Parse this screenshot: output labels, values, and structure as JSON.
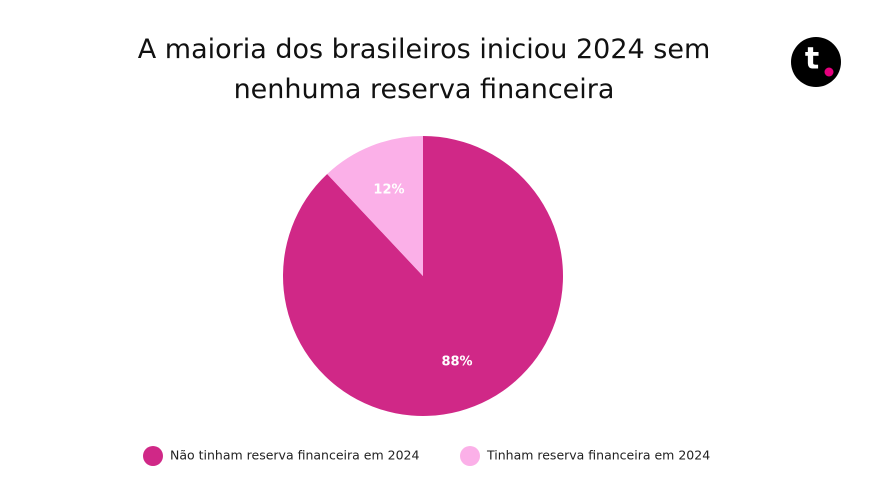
{
  "chart_data": {
    "type": "pie",
    "title": "A maioria dos brasileiros iniciou 2024 sem nenhuma reserva financeira",
    "logo": "t",
    "categories": [
      "Não tinham reserva financeira em 2024",
      "Tinham reserva financeira em 2024"
    ],
    "values": [
      88,
      12
    ],
    "value_labels": [
      "88%",
      "12%"
    ],
    "colors": [
      "#d02887",
      "#fbb0e8"
    ],
    "legend": "bottom"
  }
}
